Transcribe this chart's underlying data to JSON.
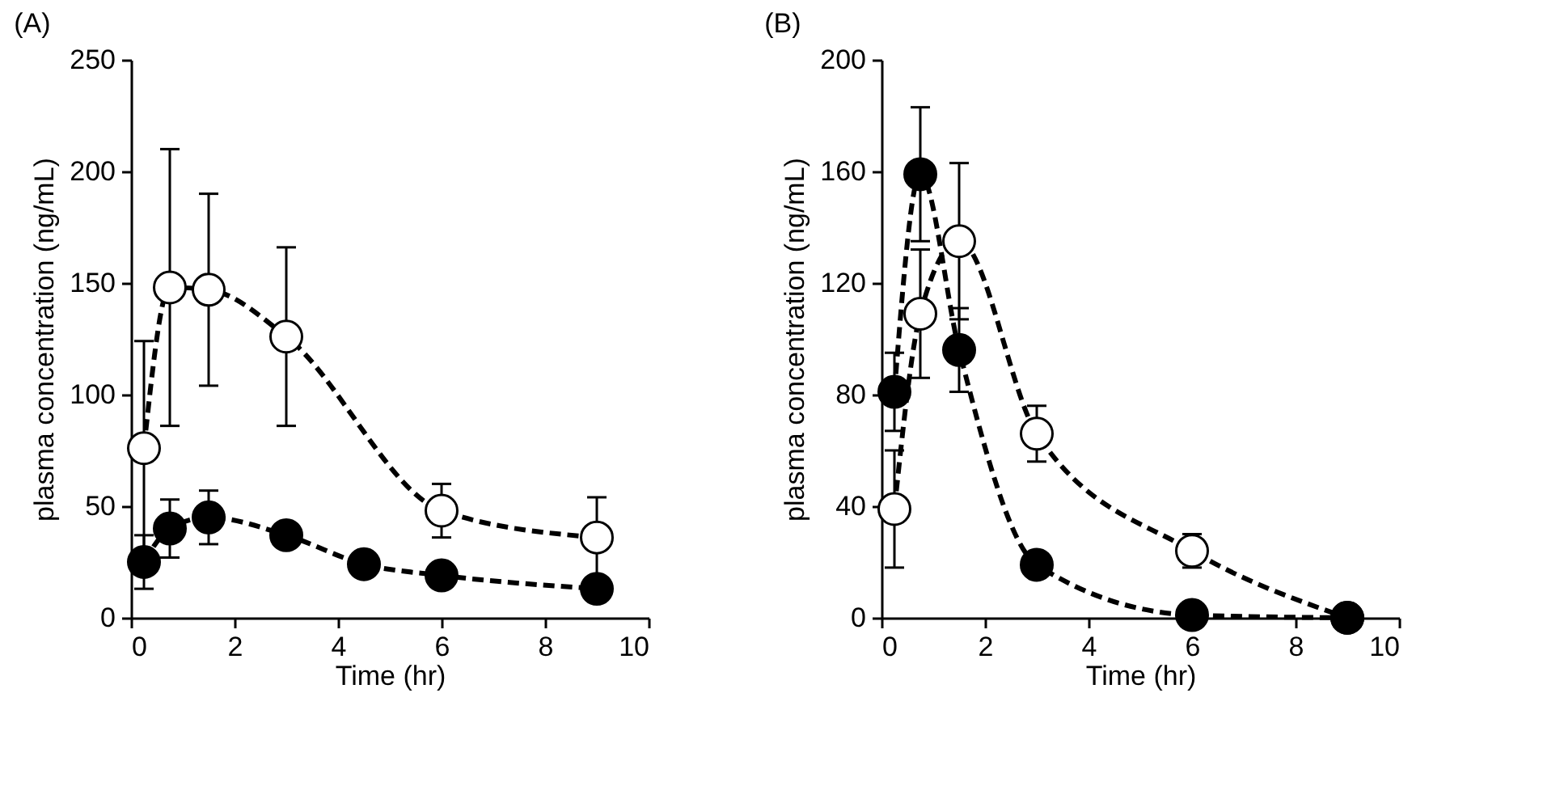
{
  "chart_data": [
    {
      "type": "line",
      "title": "(A)",
      "xlabel": "Time (hr)",
      "ylabel": "plasma concentration (ng/mL)",
      "xlim": [
        0,
        10
      ],
      "xticks": [
        0,
        2,
        4,
        6,
        8,
        10
      ],
      "ylim": [
        0,
        250
      ],
      "yticks": [
        0,
        50,
        100,
        150,
        200,
        250
      ],
      "marker": "circle",
      "line_style": "dashed",
      "grid": false,
      "series": [
        {
          "color": "#ffffff",
          "x": [
            0.25,
            0.75,
            1.5,
            3,
            6,
            9
          ],
          "values": [
            76,
            148,
            147,
            126,
            48,
            36
          ],
          "errors": [
            48,
            62,
            43,
            40,
            12,
            18
          ]
        },
        {
          "color": "#000000",
          "x": [
            0.25,
            0.75,
            1.5,
            3,
            4.5,
            6,
            9
          ],
          "values": [
            25,
            40,
            45,
            37,
            24,
            19,
            13
          ],
          "errors": [
            12,
            13,
            12,
            4,
            5,
            2,
            null
          ]
        }
      ]
    },
    {
      "type": "line",
      "title": "(B)",
      "xlabel": "Time (hr)",
      "ylabel": "plasma concentration (ng/mL)",
      "xlim": [
        0,
        10
      ],
      "xticks": [
        0,
        2,
        4,
        6,
        8,
        10
      ],
      "ylim": [
        0,
        200
      ],
      "yticks": [
        0,
        40,
        80,
        120,
        160,
        200
      ],
      "marker": "circle",
      "line_style": "dashed",
      "grid": false,
      "series": [
        {
          "color": "#ffffff",
          "x": [
            0.25,
            0.75,
            1.5,
            3,
            6,
            9
          ],
          "values": [
            39,
            109,
            135,
            66,
            24,
            0
          ],
          "errors": [
            21,
            23,
            28,
            10,
            6,
            null
          ]
        },
        {
          "color": "#000000",
          "x": [
            0.25,
            0.75,
            1.5,
            3,
            6,
            9
          ],
          "values": [
            81,
            159,
            96,
            19,
            1,
            0
          ],
          "errors": [
            14,
            24,
            15,
            null,
            null,
            null
          ]
        }
      ]
    }
  ]
}
